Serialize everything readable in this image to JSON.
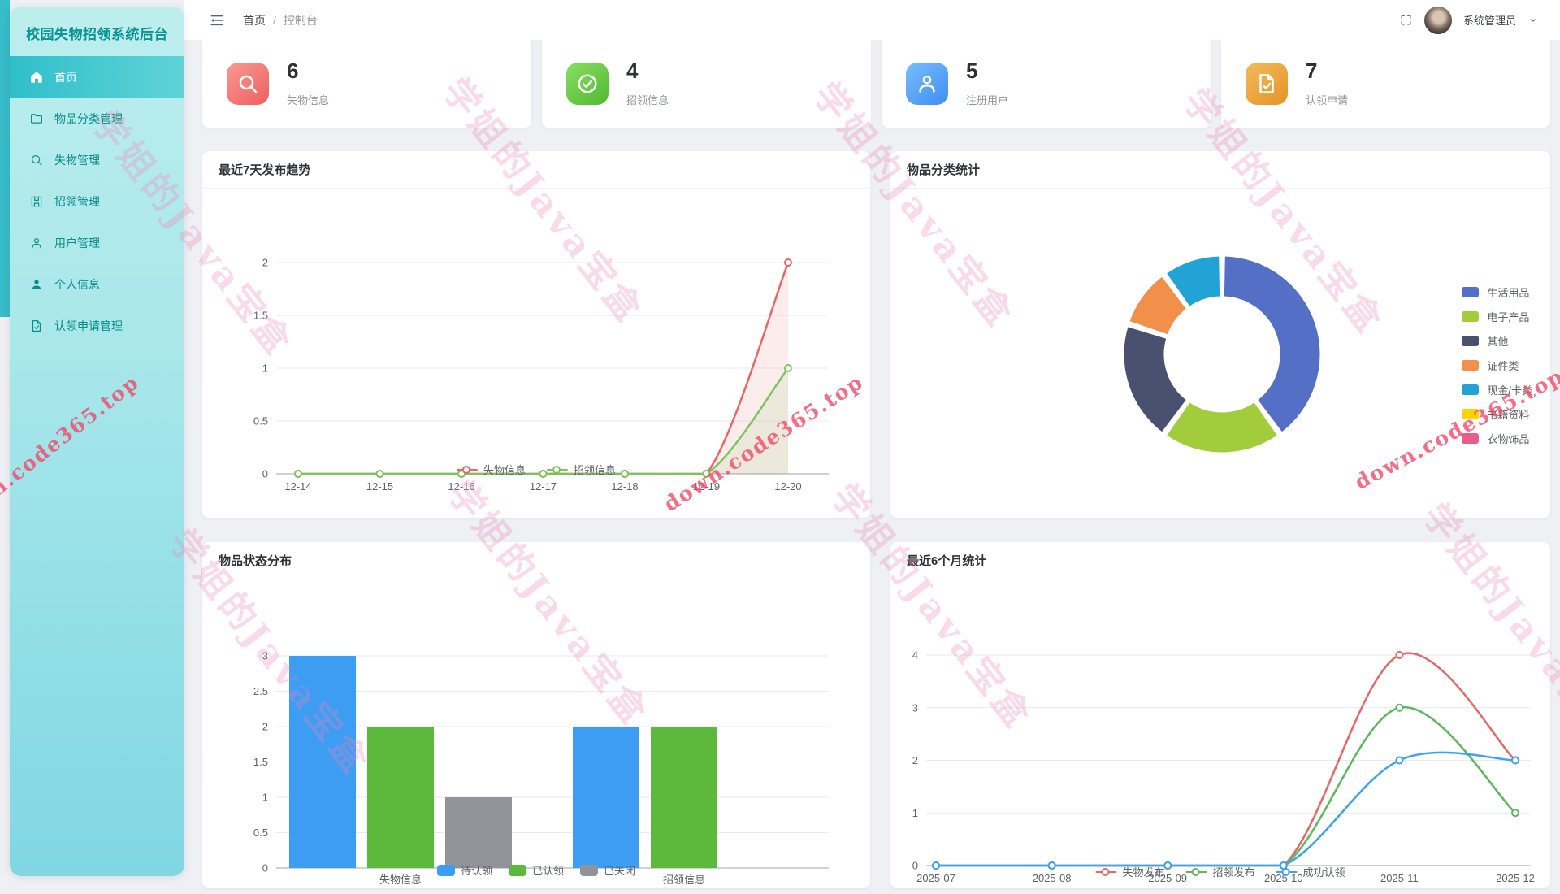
{
  "app": {
    "sidebar": {
      "title": "校园失物招领系统后台",
      "items": [
        {
          "label": "首页",
          "icon": "home-icon",
          "active": true
        },
        {
          "label": "物品分类管理",
          "icon": "folder-icon",
          "active": false
        },
        {
          "label": "失物管理",
          "icon": "search-icon",
          "active": false
        },
        {
          "label": "招领管理",
          "icon": "book-icon",
          "active": false
        },
        {
          "label": "用户管理",
          "icon": "user-outline-icon",
          "active": false
        },
        {
          "label": "个人信息",
          "icon": "user-filled-icon",
          "active": false
        },
        {
          "label": "认领申请管理",
          "icon": "document-check-icon",
          "active": false
        }
      ]
    },
    "header": {
      "breadcrumb": [
        "首页",
        "控制台"
      ],
      "breadcrumb_separator": "/",
      "user_name": "系统管理员"
    },
    "stats": [
      {
        "value": "6",
        "label": "失物信息",
        "icon": "search-icon",
        "color": "#ef5e5e",
        "color_light": "#f89a94"
      },
      {
        "value": "4",
        "label": "招领信息",
        "icon": "check-circle-icon",
        "color": "#4eba2e",
        "color_light": "#8ade64"
      },
      {
        "value": "5",
        "label": "注册用户",
        "icon": "user-outline-icon",
        "color": "#3d8ef0",
        "color_light": "#79bdff"
      },
      {
        "value": "7",
        "label": "认领申请",
        "icon": "document-check-icon",
        "color": "#e69225",
        "color_light": "#f2bb5e"
      }
    ],
    "watermarks": {
      "pink": "学姐的Java宝盒",
      "red": "down.code365.top"
    }
  },
  "chart_data": [
    {
      "type": "line",
      "name": "trend-7day",
      "title": "最近7天发布趋势",
      "categories": [
        "12-14",
        "12-15",
        "12-16",
        "12-17",
        "12-18",
        "12-19",
        "12-20"
      ],
      "series": [
        {
          "name": "失物信息",
          "color": "#e66767",
          "values": [
            0,
            0,
            0,
            0,
            0,
            0,
            2
          ]
        },
        {
          "name": "招领信息",
          "color": "#7fc35c",
          "values": [
            0,
            0,
            0,
            0,
            0,
            0,
            1
          ]
        }
      ],
      "ylim": [
        0,
        2
      ],
      "yticks": [
        0,
        0.5,
        1,
        1.5,
        2
      ],
      "xlabel": "",
      "ylabel": "",
      "grid": true,
      "smooth": true,
      "area": true,
      "legend_position": "bottom-center"
    },
    {
      "type": "pie",
      "name": "category-stats",
      "title": "物品分类统计",
      "donut": true,
      "slices": [
        {
          "name": "生活用品",
          "value": 4,
          "color": "#5470c6"
        },
        {
          "name": "电子产品",
          "value": 2,
          "color": "#a3cc3d"
        },
        {
          "name": "其他",
          "value": 2,
          "color": "#4a5170"
        },
        {
          "name": "证件类",
          "value": 1,
          "color": "#f2904b"
        },
        {
          "name": "现金/卡类",
          "value": 1,
          "color": "#22a2d5"
        },
        {
          "name": "书籍资料",
          "value": 0,
          "color": "#fdd300"
        },
        {
          "name": "衣物饰品",
          "value": 0,
          "color": "#e85d8a"
        }
      ],
      "legend_position": "right"
    },
    {
      "type": "bar",
      "name": "status-distribution",
      "title": "物品状态分布",
      "categories": [
        "失物信息",
        "招领信息"
      ],
      "series": [
        {
          "name": "待认领",
          "color": "#3d9df2",
          "values": [
            3,
            2
          ]
        },
        {
          "name": "已认领",
          "color": "#5cb93c",
          "values": [
            2,
            2
          ]
        },
        {
          "name": "已关闭",
          "color": "#909399",
          "values": [
            1,
            0
          ]
        }
      ],
      "ylim": [
        0,
        3
      ],
      "yticks": [
        0,
        0.5,
        1,
        1.5,
        2,
        2.5,
        3
      ],
      "xlabel": "",
      "ylabel": "",
      "grid": true,
      "legend_position": "bottom-center"
    },
    {
      "type": "line",
      "name": "stats-6month",
      "title": "最近6个月统计",
      "categories": [
        "2025-07",
        "2025-08",
        "2025-09",
        "2025-10",
        "2025-11",
        "2025-12"
      ],
      "series": [
        {
          "name": "失物发布",
          "color": "#e66767",
          "values": [
            0,
            0,
            0,
            0,
            4,
            2
          ]
        },
        {
          "name": "招领发布",
          "color": "#5cb85c",
          "values": [
            0,
            0,
            0,
            0,
            3,
            1
          ]
        },
        {
          "name": "成功认领",
          "color": "#3da2f0",
          "values": [
            0,
            0,
            0,
            0,
            2,
            2
          ]
        }
      ],
      "ylim": [
        0,
        4
      ],
      "yticks": [
        0,
        1,
        2,
        3,
        4
      ],
      "xlabel": "",
      "ylabel": "",
      "grid": true,
      "smooth": true,
      "area": false,
      "legend_position": "bottom-center"
    }
  ]
}
